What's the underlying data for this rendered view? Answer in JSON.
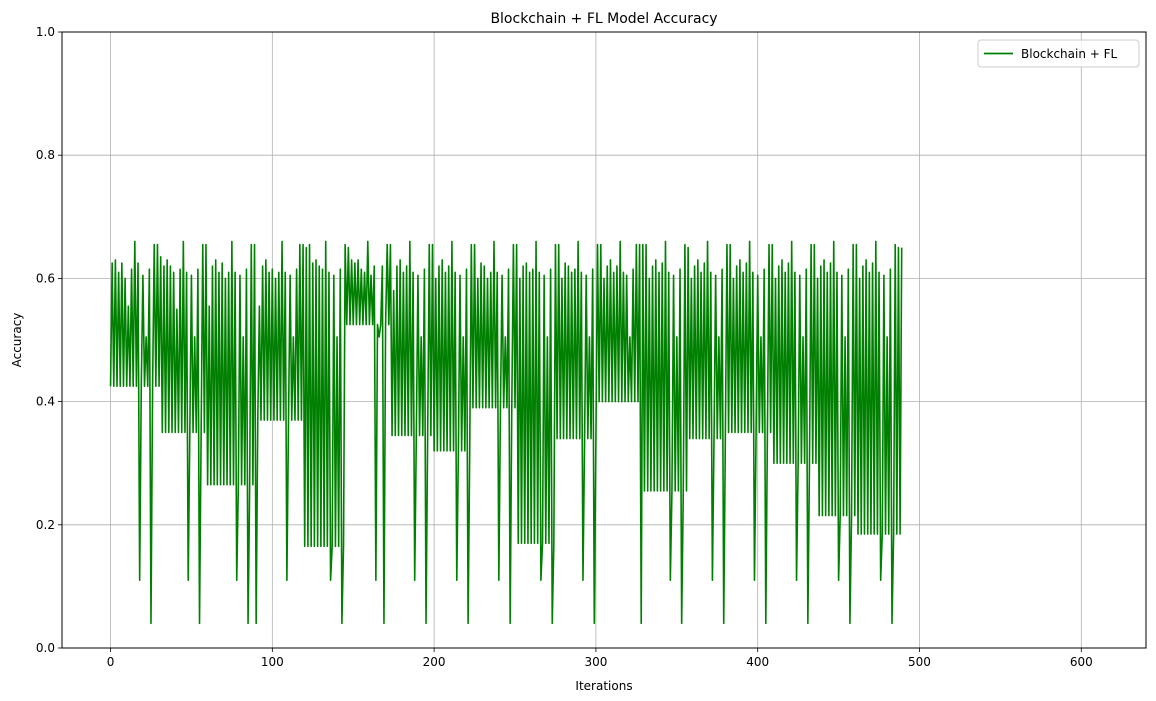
{
  "chart_data": {
    "type": "line",
    "title": "Blockchain + FL Model Accuracy",
    "xlabel": "Iterations",
    "ylabel": "Accuracy",
    "xlim": [
      -30,
      640
    ],
    "ylim": [
      0,
      1
    ],
    "xticks": [
      0,
      100,
      200,
      300,
      400,
      500,
      600
    ],
    "yticks": [
      0.0,
      0.2,
      0.4,
      0.6,
      0.8,
      1.0
    ],
    "ytick_labels": [
      "0.0",
      "0.2",
      "0.4",
      "0.6",
      "0.8",
      "1.0"
    ],
    "grid": true,
    "legend_position": "top-right",
    "series": [
      {
        "name": "Blockchain + FL",
        "color": "#008000",
        "x_start": 0,
        "x_step": 1,
        "values": [
          0.425,
          0.625,
          0.425,
          0.63,
          0.425,
          0.61,
          0.425,
          0.625,
          0.425,
          0.6,
          0.425,
          0.555,
          0.425,
          0.615,
          0.425,
          0.66,
          0.425,
          0.625,
          0.11,
          0.425,
          0.605,
          0.425,
          0.505,
          0.425,
          0.615,
          0.04,
          0.425,
          0.655,
          0.425,
          0.655,
          0.425,
          0.635,
          0.35,
          0.62,
          0.35,
          0.63,
          0.35,
          0.62,
          0.35,
          0.61,
          0.35,
          0.55,
          0.35,
          0.615,
          0.35,
          0.66,
          0.35,
          0.61,
          0.11,
          0.35,
          0.605,
          0.35,
          0.505,
          0.35,
          0.615,
          0.04,
          0.35,
          0.655,
          0.35,
          0.655,
          0.265,
          0.555,
          0.265,
          0.62,
          0.265,
          0.63,
          0.265,
          0.61,
          0.265,
          0.625,
          0.265,
          0.6,
          0.265,
          0.61,
          0.265,
          0.66,
          0.265,
          0.61,
          0.11,
          0.265,
          0.605,
          0.265,
          0.505,
          0.265,
          0.615,
          0.04,
          0.265,
          0.655,
          0.265,
          0.655,
          0.04,
          0.37,
          0.555,
          0.37,
          0.62,
          0.37,
          0.63,
          0.37,
          0.61,
          0.37,
          0.615,
          0.37,
          0.6,
          0.37,
          0.61,
          0.37,
          0.66,
          0.37,
          0.61,
          0.11,
          0.37,
          0.605,
          0.37,
          0.505,
          0.37,
          0.615,
          0.37,
          0.655,
          0.37,
          0.655,
          0.165,
          0.65,
          0.165,
          0.655,
          0.165,
          0.625,
          0.165,
          0.63,
          0.165,
          0.62,
          0.165,
          0.615,
          0.165,
          0.66,
          0.165,
          0.61,
          0.11,
          0.165,
          0.605,
          0.165,
          0.505,
          0.165,
          0.615,
          0.04,
          0.165,
          0.655,
          0.525,
          0.65,
          0.525,
          0.63,
          0.525,
          0.625,
          0.525,
          0.63,
          0.525,
          0.615,
          0.525,
          0.61,
          0.525,
          0.66,
          0.525,
          0.605,
          0.525,
          0.62,
          0.11,
          0.525,
          0.505,
          0.525,
          0.62,
          0.04,
          0.525,
          0.655,
          0.525,
          0.655,
          0.345,
          0.58,
          0.345,
          0.62,
          0.345,
          0.63,
          0.345,
          0.61,
          0.345,
          0.62,
          0.345,
          0.66,
          0.345,
          0.61,
          0.11,
          0.345,
          0.605,
          0.345,
          0.505,
          0.345,
          0.615,
          0.04,
          0.345,
          0.655,
          0.345,
          0.655,
          0.32,
          0.6,
          0.32,
          0.62,
          0.32,
          0.63,
          0.32,
          0.61,
          0.32,
          0.62,
          0.32,
          0.66,
          0.32,
          0.61,
          0.11,
          0.32,
          0.605,
          0.32,
          0.505,
          0.32,
          0.615,
          0.04,
          0.32,
          0.655,
          0.39,
          0.655,
          0.39,
          0.6,
          0.39,
          0.625,
          0.39,
          0.62,
          0.39,
          0.6,
          0.39,
          0.61,
          0.39,
          0.66,
          0.39,
          0.61,
          0.11,
          0.39,
          0.605,
          0.39,
          0.505,
          0.39,
          0.615,
          0.04,
          0.39,
          0.655,
          0.39,
          0.655,
          0.17,
          0.6,
          0.17,
          0.62,
          0.17,
          0.625,
          0.17,
          0.61,
          0.17,
          0.615,
          0.17,
          0.66,
          0.17,
          0.61,
          0.11,
          0.17,
          0.605,
          0.17,
          0.505,
          0.17,
          0.615,
          0.04,
          0.17,
          0.655,
          0.34,
          0.655,
          0.34,
          0.6,
          0.34,
          0.625,
          0.34,
          0.62,
          0.34,
          0.61,
          0.34,
          0.615,
          0.34,
          0.66,
          0.34,
          0.61,
          0.11,
          0.34,
          0.605,
          0.34,
          0.505,
          0.34,
          0.615,
          0.04,
          0.34,
          0.655,
          0.4,
          0.655,
          0.4,
          0.6,
          0.4,
          0.62,
          0.4,
          0.63,
          0.4,
          0.61,
          0.4,
          0.62,
          0.4,
          0.66,
          0.4,
          0.61,
          0.4,
          0.605,
          0.4,
          0.505,
          0.4,
          0.615,
          0.4,
          0.655,
          0.4,
          0.655,
          0.04,
          0.655,
          0.255,
          0.655,
          0.255,
          0.6,
          0.255,
          0.62,
          0.255,
          0.63,
          0.255,
          0.61,
          0.255,
          0.625,
          0.255,
          0.66,
          0.255,
          0.61,
          0.11,
          0.255,
          0.605,
          0.255,
          0.505,
          0.255,
          0.615,
          0.04,
          0.255,
          0.655,
          0.255,
          0.65,
          0.34,
          0.6,
          0.34,
          0.62,
          0.34,
          0.63,
          0.34,
          0.61,
          0.34,
          0.625,
          0.34,
          0.66,
          0.34,
          0.61,
          0.11,
          0.34,
          0.605,
          0.34,
          0.505,
          0.34,
          0.615,
          0.04,
          0.34,
          0.655,
          0.35,
          0.655,
          0.35,
          0.6,
          0.35,
          0.62,
          0.35,
          0.63,
          0.35,
          0.61,
          0.35,
          0.625,
          0.35,
          0.66,
          0.35,
          0.61,
          0.11,
          0.35,
          0.605,
          0.35,
          0.505,
          0.35,
          0.615,
          0.04,
          0.35,
          0.655,
          0.35,
          0.655,
          0.3,
          0.6,
          0.3,
          0.62,
          0.3,
          0.63,
          0.3,
          0.61,
          0.3,
          0.625,
          0.3,
          0.66,
          0.3,
          0.61,
          0.11,
          0.3,
          0.605,
          0.3,
          0.505,
          0.3,
          0.615,
          0.04,
          0.3,
          0.655,
          0.3,
          0.655,
          0.3,
          0.6,
          0.215,
          0.62,
          0.215,
          0.63,
          0.215,
          0.61,
          0.215,
          0.625,
          0.215,
          0.66,
          0.215,
          0.61,
          0.11,
          0.215,
          0.605,
          0.215,
          0.505,
          0.215,
          0.615,
          0.04,
          0.215,
          0.655,
          0.215,
          0.655,
          0.185,
          0.6,
          0.185,
          0.62,
          0.185,
          0.63,
          0.185,
          0.61,
          0.185,
          0.625,
          0.185,
          0.66,
          0.185,
          0.61,
          0.11,
          0.185,
          0.605,
          0.185,
          0.505,
          0.185,
          0.615,
          0.04,
          0.185,
          0.655,
          0.185,
          0.65,
          0.185,
          0.65
        ]
      }
    ]
  }
}
